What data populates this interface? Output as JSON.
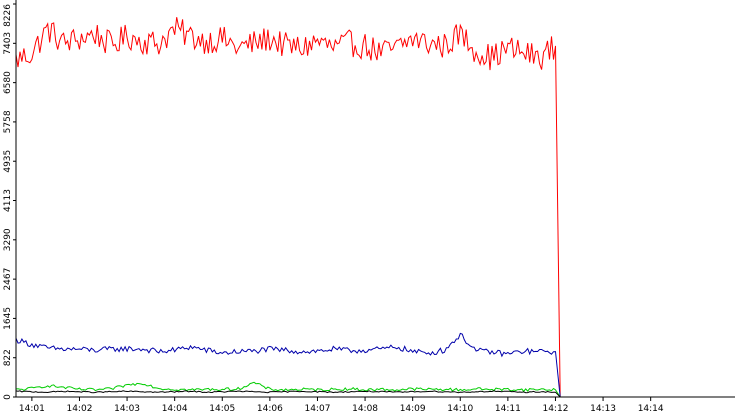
{
  "chart_data": {
    "type": "line",
    "title": "",
    "xlabel": "",
    "ylabel": "",
    "ylim": [
      0,
      8226
    ],
    "xlim": [
      "14:00:40",
      "14:14:40"
    ],
    "grid": false,
    "y_ticks": [
      "0",
      "822",
      "1645",
      "2467",
      "3290",
      "4113",
      "4935",
      "5758",
      "6580",
      "7403",
      "8226"
    ],
    "x_ticks": [
      "14:01",
      "14:02",
      "14:03",
      "14:04",
      "14:05",
      "14:06",
      "14:07",
      "14:08",
      "14:09",
      "14:10",
      "14:11",
      "14:12",
      "14:13",
      "14:14"
    ],
    "series": [
      {
        "color": "#ff0000",
        "x": [
          "14:00:40",
          "14:01:00",
          "14:01:20",
          "14:01:40",
          "14:02:00",
          "14:02:20",
          "14:02:40",
          "14:03:00",
          "14:03:20",
          "14:03:40",
          "14:04:00",
          "14:04:20",
          "14:04:40",
          "14:05:00",
          "14:05:20",
          "14:05:40",
          "14:06:00",
          "14:06:20",
          "14:06:40",
          "14:07:00",
          "14:07:20",
          "14:07:40",
          "14:08:00",
          "14:08:20",
          "14:08:40",
          "14:09:00",
          "14:09:20",
          "14:09:40",
          "14:10:00",
          "14:10:20",
          "14:10:40",
          "14:11:00",
          "14:11:20",
          "14:11:40",
          "14:12:00",
          "14:12:06"
        ],
        "values": [
          7050,
          7200,
          7700,
          7400,
          7500,
          7600,
          7350,
          7550,
          7450,
          7400,
          7700,
          7550,
          7450,
          7500,
          7300,
          7400,
          7500,
          7350,
          7300,
          7450,
          7300,
          7400,
          7350,
          7200,
          7300,
          7500,
          7400,
          7350,
          7600,
          7250,
          7100,
          7300,
          7200,
          7100,
          7350,
          0
        ]
      },
      {
        "color": "#0000aa",
        "x": [
          "14:00:40",
          "14:01:00",
          "14:01:20",
          "14:01:40",
          "14:02:00",
          "14:02:20",
          "14:02:40",
          "14:03:00",
          "14:03:20",
          "14:03:40",
          "14:04:00",
          "14:04:20",
          "14:04:40",
          "14:05:00",
          "14:05:20",
          "14:05:40",
          "14:06:00",
          "14:06:20",
          "14:06:40",
          "14:07:00",
          "14:07:20",
          "14:07:40",
          "14:08:00",
          "14:08:20",
          "14:08:40",
          "14:09:00",
          "14:09:20",
          "14:09:40",
          "14:10:00",
          "14:10:20",
          "14:10:40",
          "14:11:00",
          "14:11:20",
          "14:11:40",
          "14:12:00",
          "14:12:06"
        ],
        "values": [
          1200,
          1100,
          1020,
          1000,
          1000,
          980,
          1000,
          1010,
          1000,
          950,
          980,
          1050,
          980,
          920,
          950,
          960,
          1000,
          980,
          950,
          960,
          1000,
          970,
          980,
          1000,
          1050,
          950,
          920,
          980,
          1300,
          970,
          940,
          900,
          960,
          950,
          950,
          0
        ]
      },
      {
        "color": "#00cc00",
        "x": [
          "14:00:40",
          "14:01:00",
          "14:01:20",
          "14:01:40",
          "14:02:00",
          "14:02:20",
          "14:02:40",
          "14:03:00",
          "14:03:20",
          "14:03:40",
          "14:04:00",
          "14:04:20",
          "14:04:40",
          "14:05:00",
          "14:05:20",
          "14:05:40",
          "14:06:00",
          "14:06:20",
          "14:06:40",
          "14:07:00",
          "14:07:20",
          "14:07:40",
          "14:08:00",
          "14:08:20",
          "14:08:40",
          "14:09:00",
          "14:09:20",
          "14:09:40",
          "14:10:00",
          "14:10:20",
          "14:10:40",
          "14:11:00",
          "14:11:20",
          "14:11:40",
          "14:12:00",
          "14:12:06"
        ],
        "values": [
          150,
          180,
          240,
          200,
          160,
          150,
          170,
          250,
          290,
          180,
          160,
          150,
          160,
          160,
          170,
          300,
          160,
          150,
          160,
          150,
          160,
          170,
          150,
          160,
          150,
          170,
          160,
          160,
          150,
          170,
          160,
          160,
          150,
          160,
          150,
          0
        ]
      },
      {
        "color": "#000000",
        "x": [
          "14:00:40",
          "14:01:00",
          "14:01:20",
          "14:01:40",
          "14:02:00",
          "14:02:20",
          "14:02:40",
          "14:03:00",
          "14:03:20",
          "14:03:40",
          "14:04:00",
          "14:04:20",
          "14:04:40",
          "14:05:00",
          "14:05:20",
          "14:05:40",
          "14:06:00",
          "14:06:20",
          "14:06:40",
          "14:07:00",
          "14:07:20",
          "14:07:40",
          "14:08:00",
          "14:08:20",
          "14:08:40",
          "14:09:00",
          "14:09:20",
          "14:09:40",
          "14:10:00",
          "14:10:20",
          "14:10:40",
          "14:11:00",
          "14:11:20",
          "14:11:40",
          "14:12:00",
          "14:12:06"
        ],
        "values": [
          120,
          110,
          100,
          120,
          110,
          100,
          110,
          120,
          110,
          100,
          110,
          120,
          100,
          110,
          120,
          110,
          100,
          110,
          120,
          110,
          100,
          110,
          120,
          110,
          100,
          110,
          120,
          110,
          100,
          110,
          120,
          110,
          100,
          110,
          100,
          0
        ]
      }
    ]
  }
}
